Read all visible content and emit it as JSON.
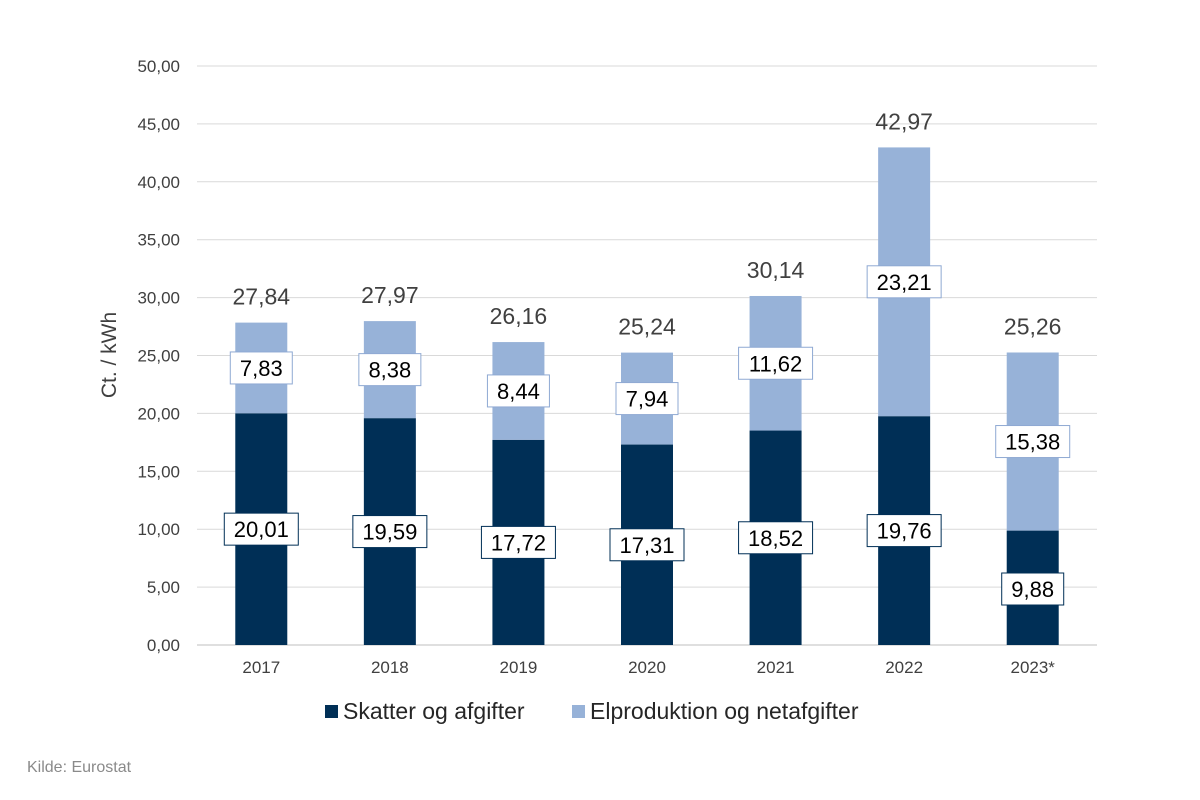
{
  "chart_data": {
    "type": "bar",
    "stacked": true,
    "categories": [
      "2017",
      "2018",
      "2019",
      "2020",
      "2021",
      "2022",
      "2023*"
    ],
    "series": [
      {
        "name": "Skatter og afgifter",
        "color": "#002f56",
        "values": [
          20.01,
          19.59,
          17.72,
          17.31,
          18.52,
          19.76,
          9.88
        ]
      },
      {
        "name": "Elproduktion og netafgifter",
        "color": "#97b2d8",
        "values": [
          7.83,
          8.38,
          8.44,
          7.94,
          11.62,
          23.21,
          15.38
        ]
      }
    ],
    "segment_labels": [
      [
        "20,01",
        "19,59",
        "17,72",
        "17,31",
        "18,52",
        "19,76",
        "9,88"
      ],
      [
        "7,83",
        "8,38",
        "8,44",
        "7,94",
        "11,62",
        "23,21",
        "15,38"
      ]
    ],
    "totals": [
      27.84,
      27.97,
      26.16,
      25.24,
      30.14,
      42.97,
      25.26
    ],
    "total_labels": [
      "27,84",
      "27,97",
      "26,16",
      "25,24",
      "30,14",
      "42,97",
      "25,26"
    ],
    "ylim": [
      0,
      50
    ],
    "yticks": [
      0,
      5,
      10,
      15,
      20,
      25,
      30,
      35,
      40,
      45,
      50
    ],
    "ytick_labels": [
      "0,00",
      "5,00",
      "10,00",
      "15,00",
      "20,00",
      "25,00",
      "30,00",
      "35,00",
      "40,00",
      "45,00",
      "50,00"
    ],
    "ylabel": "Ct. / kWh",
    "xlabel": "",
    "grid": true,
    "legend_position": "bottom"
  },
  "source": "Kilde: Eurostat"
}
